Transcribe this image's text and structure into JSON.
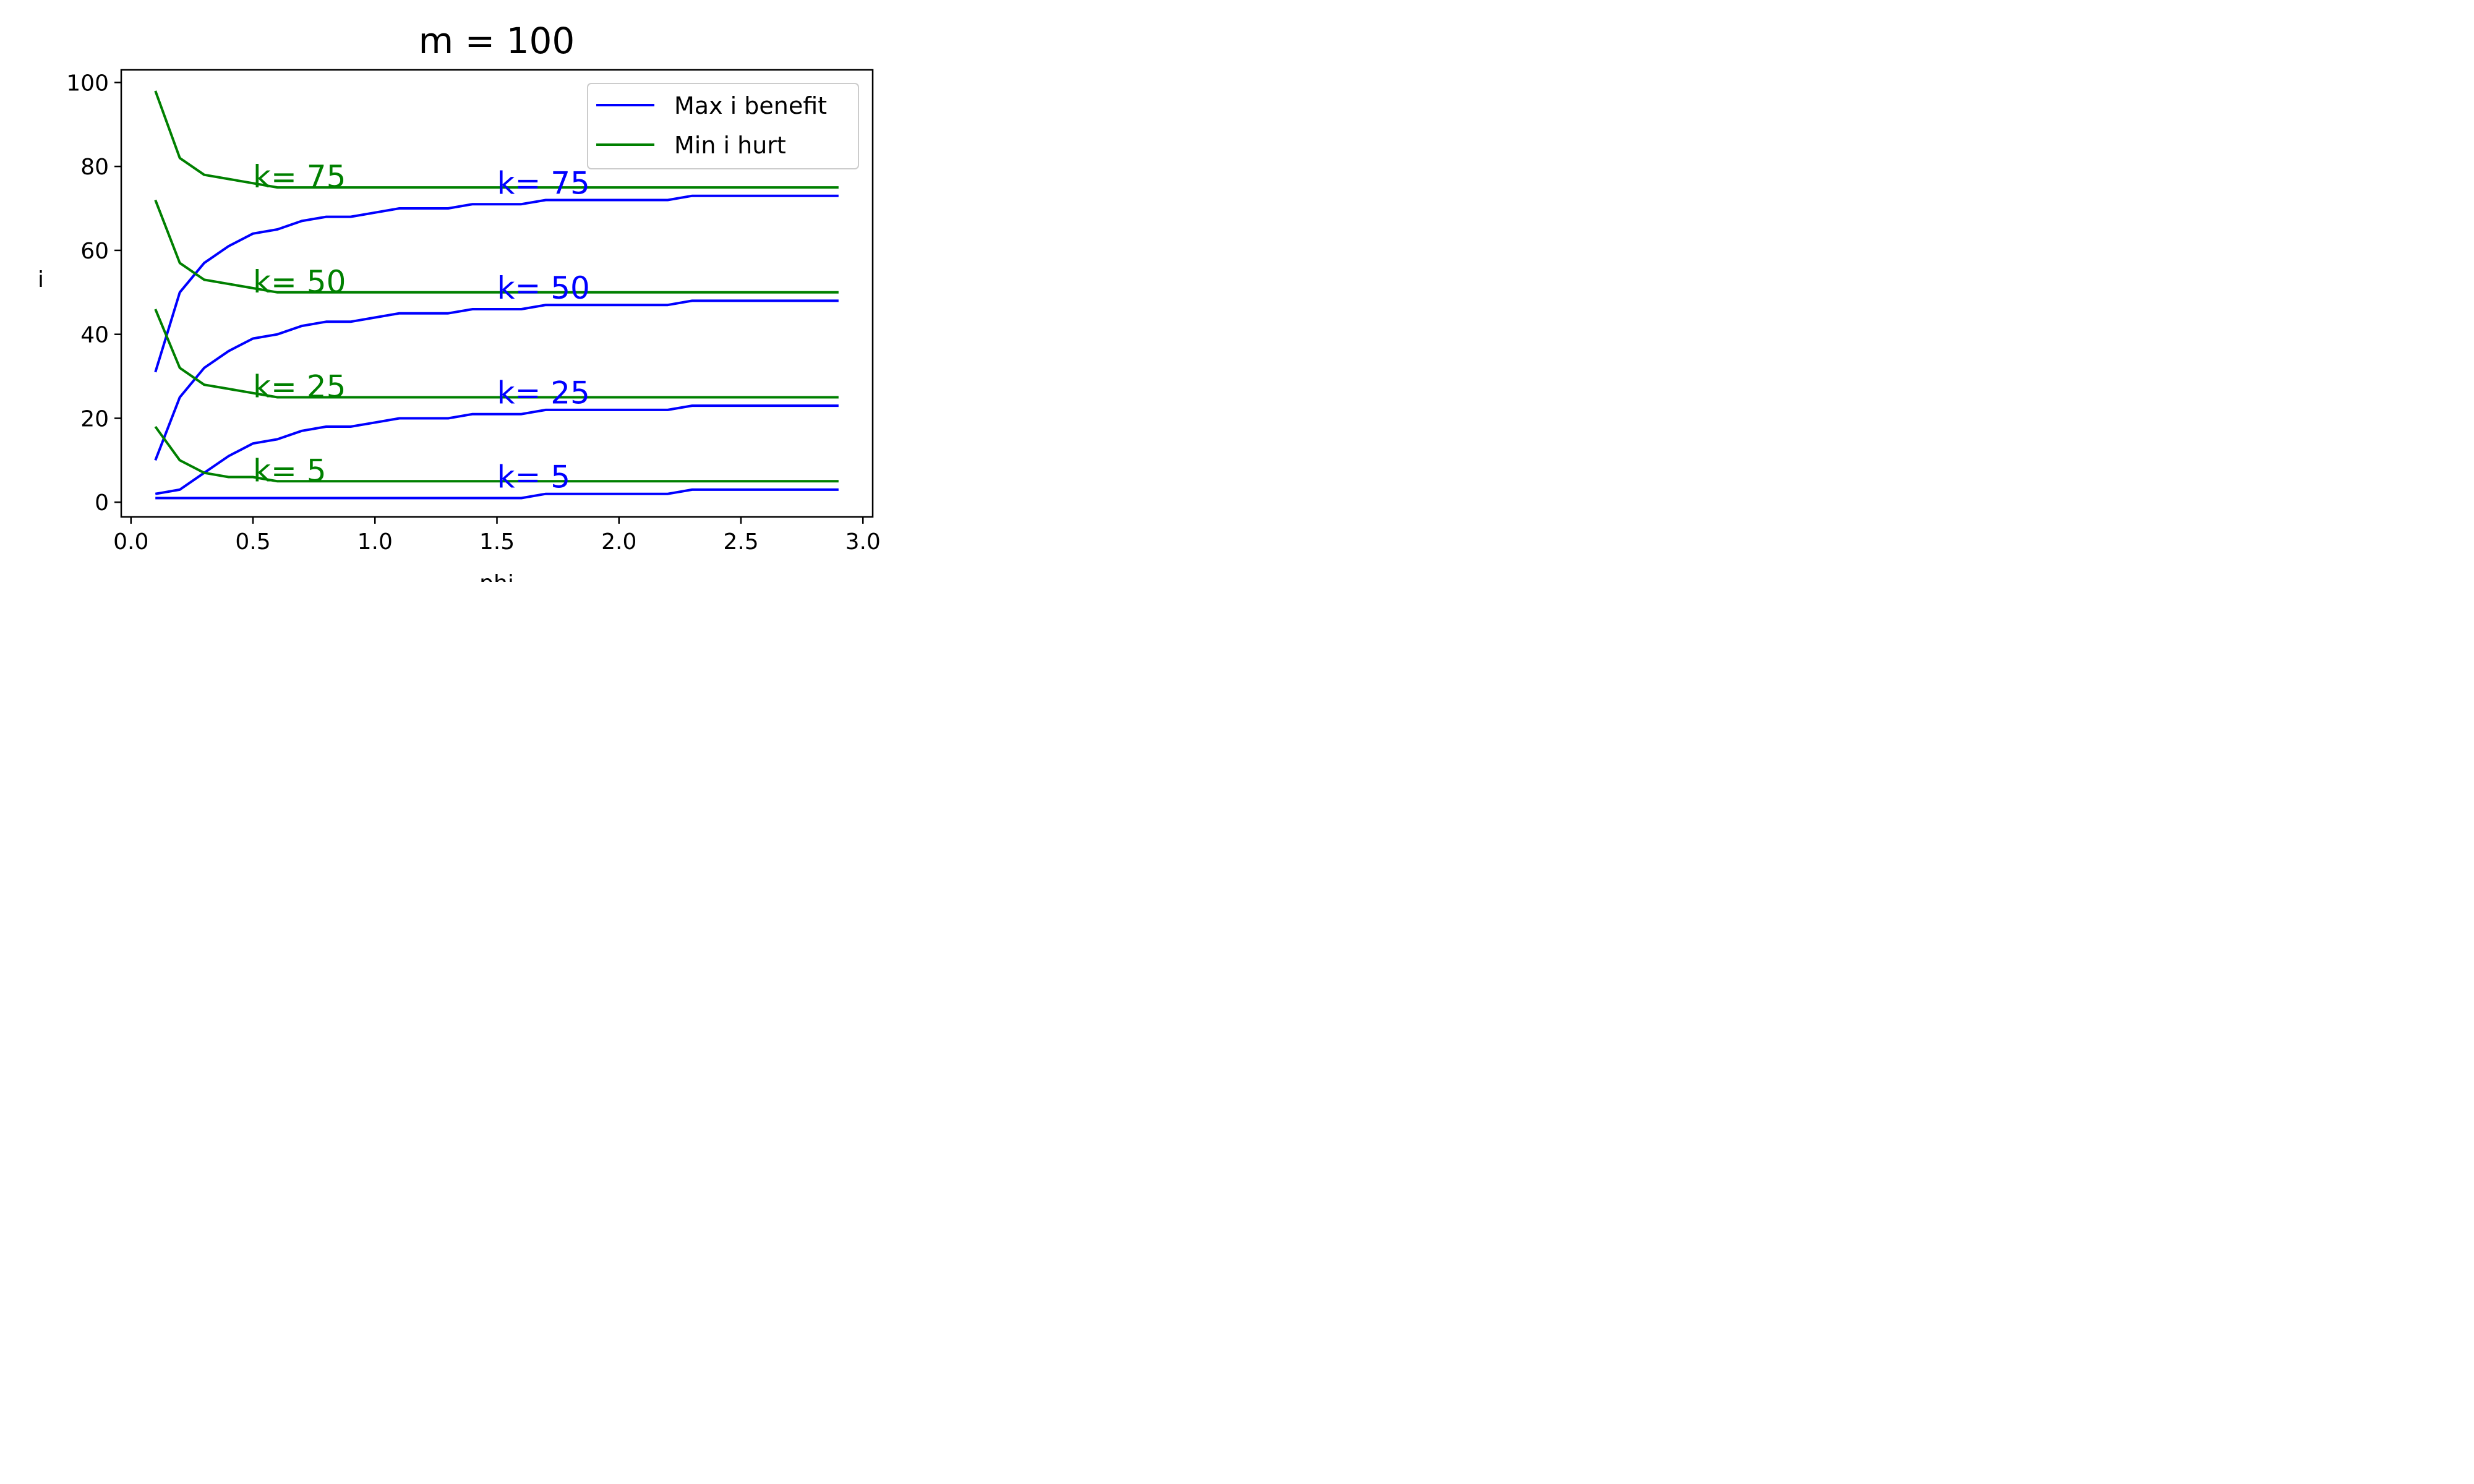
{
  "chart_data": {
    "type": "line",
    "title": "m = 100",
    "xlabel": "phi",
    "ylabel": "i",
    "xlim": [
      -0.04,
      3.04
    ],
    "ylim": [
      -3.5,
      103
    ],
    "xticks": [
      0.0,
      0.5,
      1.0,
      1.5,
      2.0,
      2.5,
      3.0
    ],
    "xtick_labels": [
      "0.0",
      "0.5",
      "1.0",
      "1.5",
      "2.0",
      "2.5",
      "3.0"
    ],
    "yticks": [
      0,
      20,
      40,
      60,
      80,
      100
    ],
    "ytick_labels": [
      "0",
      "20",
      "40",
      "60",
      "80",
      "100"
    ],
    "grid": false,
    "legend_position": "top-right",
    "legend": [
      {
        "label": "Max i benefit",
        "color": "#0000ff"
      },
      {
        "label": "Min i hurt",
        "color": "#008000"
      }
    ],
    "x": [
      0.1,
      0.2,
      0.3,
      0.4,
      0.5,
      0.6,
      0.7,
      0.8,
      0.9,
      1.0,
      1.1,
      1.2,
      1.3,
      1.4,
      1.5,
      1.6,
      1.7,
      1.8,
      1.9,
      2.0,
      2.1,
      2.2,
      2.3,
      2.4,
      2.5,
      2.6,
      2.7,
      2.8,
      2.9
    ],
    "series": [
      {
        "group": "Max i benefit",
        "k": 75,
        "color": "#0000ff",
        "values": [
          31,
          50,
          57,
          61,
          64,
          65,
          67,
          68,
          68,
          69,
          70,
          70,
          70,
          71,
          71,
          71,
          72,
          72,
          72,
          72,
          72,
          72,
          73,
          73,
          73,
          73,
          73,
          73,
          73
        ]
      },
      {
        "group": "Max i benefit",
        "k": 50,
        "color": "#0000ff",
        "values": [
          10,
          25,
          32,
          36,
          39,
          40,
          42,
          43,
          43,
          44,
          45,
          45,
          45,
          46,
          46,
          46,
          47,
          47,
          47,
          47,
          47,
          47,
          48,
          48,
          48,
          48,
          48,
          48,
          48
        ]
      },
      {
        "group": "Max i benefit",
        "k": 25,
        "color": "#0000ff",
        "values": [
          2,
          3,
          7,
          11,
          14,
          15,
          17,
          18,
          18,
          19,
          20,
          20,
          20,
          21,
          21,
          21,
          22,
          22,
          22,
          22,
          22,
          22,
          23,
          23,
          23,
          23,
          23,
          23,
          23
        ]
      },
      {
        "group": "Max i benefit",
        "k": 5,
        "color": "#0000ff",
        "values": [
          1,
          1,
          1,
          1,
          1,
          1,
          1,
          1,
          1,
          1,
          1,
          1,
          1,
          1,
          1,
          1,
          2,
          2,
          2,
          2,
          2,
          2,
          3,
          3,
          3,
          3,
          3,
          3,
          3
        ]
      },
      {
        "group": "Min i hurt",
        "k": 75,
        "color": "#008000",
        "values": [
          98,
          82,
          78,
          77,
          76,
          75,
          75,
          75,
          75,
          75,
          75,
          75,
          75,
          75,
          75,
          75,
          75,
          75,
          75,
          75,
          75,
          75,
          75,
          75,
          75,
          75,
          75,
          75,
          75
        ]
      },
      {
        "group": "Min i hurt",
        "k": 50,
        "color": "#008000",
        "values": [
          72,
          57,
          53,
          52,
          51,
          50,
          50,
          50,
          50,
          50,
          50,
          50,
          50,
          50,
          50,
          50,
          50,
          50,
          50,
          50,
          50,
          50,
          50,
          50,
          50,
          50,
          50,
          50,
          50
        ]
      },
      {
        "group": "Min i hurt",
        "k": 25,
        "color": "#008000",
        "values": [
          46,
          32,
          28,
          27,
          26,
          25,
          25,
          25,
          25,
          25,
          25,
          25,
          25,
          25,
          25,
          25,
          25,
          25,
          25,
          25,
          25,
          25,
          25,
          25,
          25,
          25,
          25,
          25,
          25
        ]
      },
      {
        "group": "Min i hurt",
        "k": 5,
        "color": "#008000",
        "values": [
          18,
          10,
          7,
          6,
          6,
          5,
          5,
          5,
          5,
          5,
          5,
          5,
          5,
          5,
          5,
          5,
          5,
          5,
          5,
          5,
          5,
          5,
          5,
          5,
          5,
          5,
          5,
          5,
          5
        ]
      }
    ],
    "annotations": [
      {
        "text": "k= 75",
        "x": 0.5,
        "y": 75,
        "color": "#008000"
      },
      {
        "text": "k= 50",
        "x": 0.5,
        "y": 50,
        "color": "#008000"
      },
      {
        "text": "k= 25",
        "x": 0.5,
        "y": 25,
        "color": "#008000"
      },
      {
        "text": "k= 5",
        "x": 0.5,
        "y": 5,
        "color": "#008000"
      },
      {
        "text": "k= 75",
        "x": 1.5,
        "y": 73.5,
        "color": "#0000ff"
      },
      {
        "text": "k= 50",
        "x": 1.5,
        "y": 48.5,
        "color": "#0000ff"
      },
      {
        "text": "k= 25",
        "x": 1.5,
        "y": 23.5,
        "color": "#0000ff"
      },
      {
        "text": "k= 5",
        "x": 1.5,
        "y": 3.5,
        "color": "#0000ff"
      }
    ]
  }
}
